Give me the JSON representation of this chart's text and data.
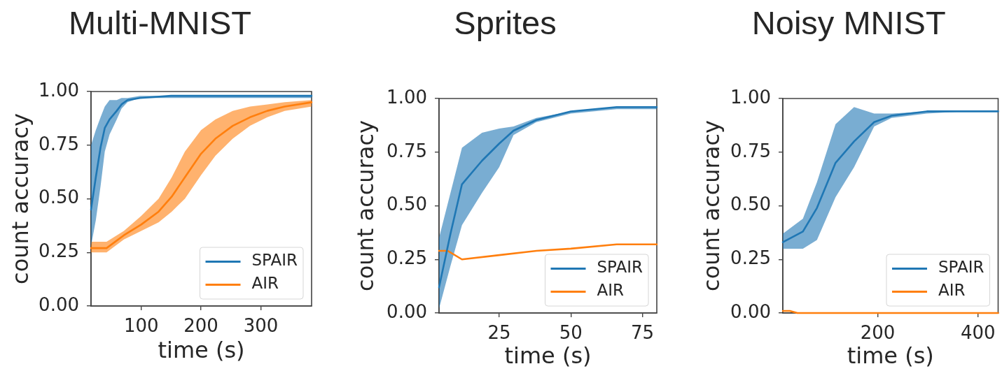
{
  "chart_data": [
    {
      "type": "line",
      "title": "Multi-MNIST",
      "xlabel": "time (s)",
      "ylabel": "count accuracy",
      "xlim": [
        16,
        385
      ],
      "xticks": [
        100,
        200,
        300
      ],
      "ylim": [
        0,
        1
      ],
      "yticks": [
        {
          "value": 0,
          "label": "0.00"
        },
        {
          "value": 0.25,
          "label": "0.25"
        },
        {
          "value": 0.5,
          "label": "0.50"
        },
        {
          "value": 0.75,
          "label": "0.75"
        },
        {
          "value": 1,
          "label": "1.00"
        }
      ],
      "legend": "bottom right",
      "series": [
        {
          "name": "SPAIR",
          "color": "#1f77b4",
          "x": [
            16,
            24,
            32,
            39,
            47,
            59,
            67,
            77,
            98,
            150,
            250,
            385
          ],
          "values": [
            0.45,
            0.6,
            0.74,
            0.83,
            0.87,
            0.91,
            0.94,
            0.96,
            0.97,
            0.98,
            0.98,
            0.98
          ],
          "lower": [
            0.28,
            0.4,
            0.56,
            0.72,
            0.8,
            0.87,
            0.92,
            0.95,
            0.97,
            0.97,
            0.97,
            0.97
          ],
          "upper": [
            0.75,
            0.82,
            0.88,
            0.93,
            0.96,
            0.96,
            0.97,
            0.97,
            0.98,
            0.98,
            0.98,
            0.98
          ]
        },
        {
          "name": "AIR",
          "color": "#ff7f0e",
          "x": [
            16,
            30,
            42,
            71,
            100,
            129,
            151,
            173,
            200,
            224,
            253,
            282,
            311,
            340,
            385
          ],
          "values": [
            0.27,
            0.27,
            0.27,
            0.33,
            0.38,
            0.44,
            0.51,
            0.6,
            0.71,
            0.78,
            0.84,
            0.88,
            0.91,
            0.93,
            0.95
          ],
          "lower": [
            0.25,
            0.25,
            0.25,
            0.31,
            0.35,
            0.39,
            0.44,
            0.5,
            0.61,
            0.7,
            0.78,
            0.84,
            0.88,
            0.91,
            0.93
          ],
          "upper": [
            0.3,
            0.3,
            0.3,
            0.35,
            0.42,
            0.5,
            0.6,
            0.72,
            0.82,
            0.87,
            0.91,
            0.93,
            0.94,
            0.95,
            0.96
          ]
        }
      ]
    },
    {
      "type": "line",
      "title": "Sprites",
      "xlabel": "time (s)",
      "ylabel": "count accuracy",
      "xlim": [
        4,
        80
      ],
      "xticks": [
        25,
        50,
        75
      ],
      "ylim": [
        0,
        1
      ],
      "yticks": [
        {
          "value": 0,
          "label": "0.00"
        },
        {
          "value": 0.25,
          "label": "0.25"
        },
        {
          "value": 0.5,
          "label": "0.50"
        },
        {
          "value": 0.75,
          "label": "0.75"
        },
        {
          "value": 1,
          "label": "1.00"
        }
      ],
      "legend": "bottom right",
      "series": [
        {
          "name": "SPAIR",
          "color": "#1f77b4",
          "x": [
            4,
            8,
            12,
            19,
            25,
            30,
            38,
            50,
            66,
            80
          ],
          "values": [
            0.12,
            0.37,
            0.6,
            0.71,
            0.79,
            0.85,
            0.9,
            0.94,
            0.96,
            0.96
          ],
          "lower": [
            0.02,
            0.22,
            0.41,
            0.56,
            0.68,
            0.83,
            0.89,
            0.93,
            0.95,
            0.95
          ],
          "upper": [
            0.35,
            0.56,
            0.77,
            0.84,
            0.86,
            0.87,
            0.91,
            0.94,
            0.96,
            0.96
          ]
        },
        {
          "name": "AIR",
          "color": "#ff7f0e",
          "x": [
            4,
            7,
            12,
            25,
            38,
            50,
            66,
            80
          ],
          "values": [
            0.29,
            0.29,
            0.25,
            0.27,
            0.29,
            0.3,
            0.32,
            0.32
          ]
        }
      ]
    },
    {
      "type": "line",
      "title": "Noisy MNIST",
      "xlabel": "time (s)",
      "ylabel": "count accuracy",
      "xlim": [
        11,
        440
      ],
      "xticks": [
        200,
        400
      ],
      "ylim": [
        0,
        1
      ],
      "yticks": [
        {
          "value": 0,
          "label": "0.00"
        },
        {
          "value": 0.25,
          "label": "0.25"
        },
        {
          "value": 0.5,
          "label": "0.50"
        },
        {
          "value": 0.75,
          "label": "0.75"
        },
        {
          "value": 1,
          "label": "1.00"
        }
      ],
      "legend": "bottom right",
      "series": [
        {
          "name": "SPAIR",
          "color": "#1f77b4",
          "x": [
            11,
            51,
            79,
            116,
            153,
            193,
            228,
            298,
            370,
            440
          ],
          "values": [
            0.33,
            0.38,
            0.49,
            0.7,
            0.8,
            0.89,
            0.92,
            0.94,
            0.94,
            0.94
          ],
          "lower": [
            0.3,
            0.3,
            0.34,
            0.54,
            0.68,
            0.87,
            0.91,
            0.93,
            0.94,
            0.94
          ],
          "upper": [
            0.37,
            0.44,
            0.61,
            0.88,
            0.96,
            0.93,
            0.93,
            0.94,
            0.94,
            0.94
          ]
        },
        {
          "name": "AIR",
          "color": "#ff7f0e",
          "x": [
            11,
            25,
            40,
            60,
            440
          ],
          "values": [
            0.01,
            0.01,
            0,
            0,
            0
          ]
        }
      ]
    }
  ]
}
